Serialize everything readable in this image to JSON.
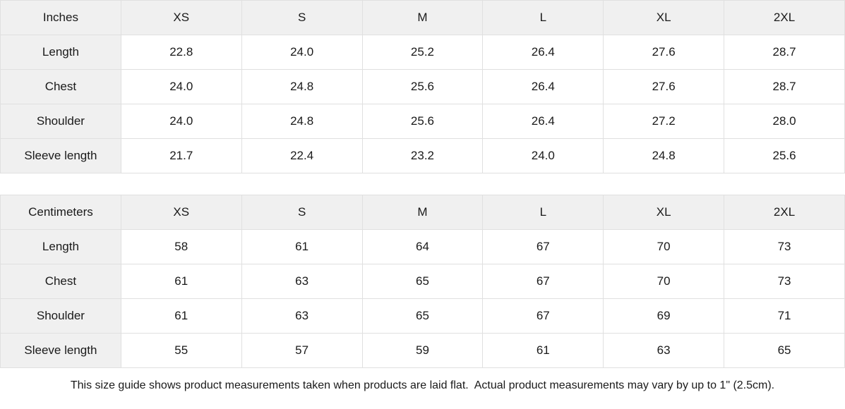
{
  "tables": [
    {
      "unit_label": "Inches",
      "columns": [
        "XS",
        "S",
        "M",
        "L",
        "XL",
        "2XL"
      ],
      "rows": [
        {
          "label": "Length",
          "values": [
            "22.8",
            "24.0",
            "25.2",
            "26.4",
            "27.6",
            "28.7"
          ]
        },
        {
          "label": "Chest",
          "values": [
            "24.0",
            "24.8",
            "25.6",
            "26.4",
            "27.6",
            "28.7"
          ]
        },
        {
          "label": "Shoulder",
          "values": [
            "24.0",
            "24.8",
            "25.6",
            "26.4",
            "27.2",
            "28.0"
          ]
        },
        {
          "label": "Sleeve length",
          "values": [
            "21.7",
            "22.4",
            "23.2",
            "24.0",
            "24.8",
            "25.6"
          ]
        }
      ]
    },
    {
      "unit_label": "Centimeters",
      "columns": [
        "XS",
        "S",
        "M",
        "L",
        "XL",
        "2XL"
      ],
      "rows": [
        {
          "label": "Length",
          "values": [
            "58",
            "61",
            "64",
            "67",
            "70",
            "73"
          ]
        },
        {
          "label": "Chest",
          "values": [
            "61",
            "63",
            "65",
            "67",
            "70",
            "73"
          ]
        },
        {
          "label": "Shoulder",
          "values": [
            "61",
            "63",
            "65",
            "67",
            "69",
            "71"
          ]
        },
        {
          "label": "Sleeve length",
          "values": [
            "55",
            "57",
            "59",
            "61",
            "63",
            "65"
          ]
        }
      ]
    }
  ],
  "footer_note": "This size guide shows product measurements taken when products are laid flat.  Actual product measurements may vary by up to 1\" (2.5cm).",
  "colors": {
    "header_bg": "#f0f0f0",
    "border": "#e0e0e0",
    "text": "#1a1a1a",
    "background": "#ffffff"
  }
}
